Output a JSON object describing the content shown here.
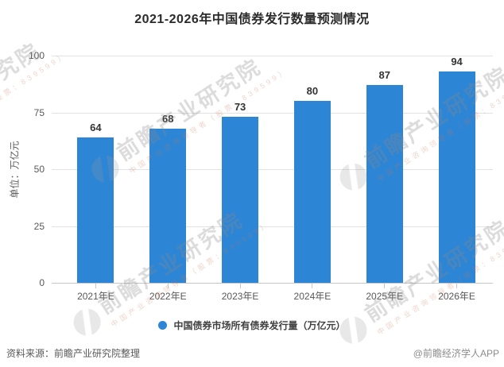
{
  "title": "2021-2026年中国债券发行数量预测情况",
  "chart_data": {
    "type": "bar",
    "title": "2021-2026年中国债券发行数量预测情况",
    "categories": [
      "2021年E",
      "2022年E",
      "2023年E",
      "2024年E",
      "2025年E",
      "2026年E"
    ],
    "values": [
      64,
      68,
      73,
      80,
      87,
      94
    ],
    "series_name": "中国债券市场所有债券发行量（万亿元）",
    "xlabel": "",
    "ylabel": "单位：万亿元",
    "ylim": [
      0,
      100
    ],
    "yticks": [
      0,
      25,
      50,
      75,
      100
    ],
    "grid": true,
    "legend_position": "bottom",
    "bar_color": "#2d85d5"
  },
  "legend": {
    "marker_color": "#2d85d5",
    "label": "中国债券市场所有债券发行量（万亿元）"
  },
  "footer": {
    "source": "资料来源：前瞻产业研究院整理",
    "credit": "@前瞻经济学人APP"
  },
  "watermark": {
    "text": "前瞻产业研究院",
    "subtext": "中国产业咨询领导者（股票：839599）"
  }
}
